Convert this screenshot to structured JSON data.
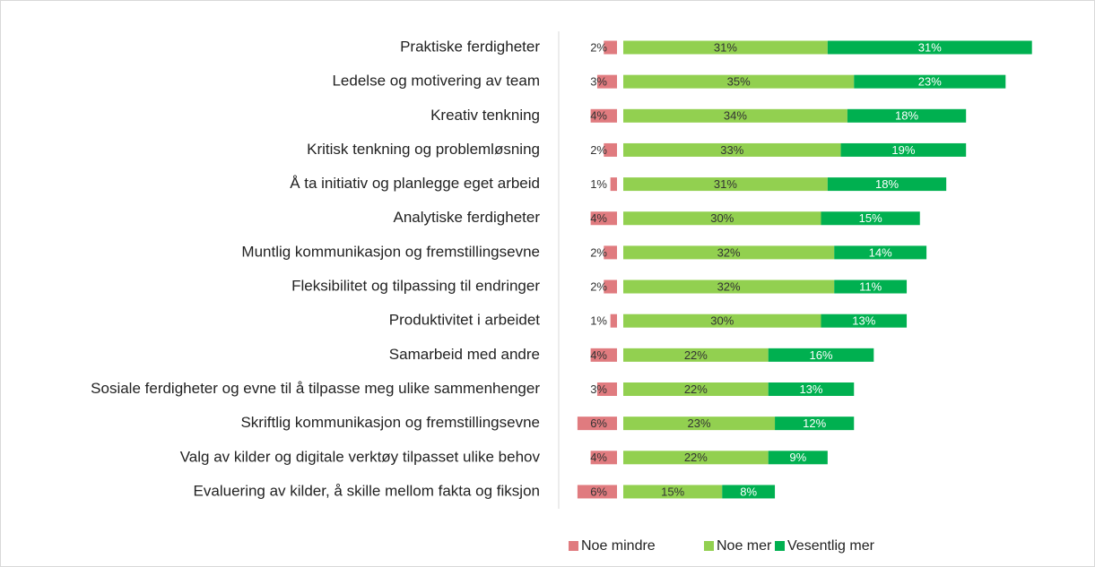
{
  "chart_data": {
    "type": "diverging_bar",
    "categories": [
      "Praktiske ferdigheter",
      "Ledelse og motivering av team",
      "Kreativ tenkning",
      "Kritisk tenkning og problemløsning",
      "Å ta initiativ og planlegge eget arbeid",
      "Analytiske ferdigheter",
      "Muntlig kommunikasjon og fremstillingsevne",
      "Fleksibilitet og tilpassing til endringer",
      "Produktivitet i arbeidet",
      "Samarbeid med andre",
      "Sosiale ferdigheter og evne til å tilpasse meg ulike sammenhenger",
      "Skriftlig kommunikasjon og fremstillingsevne",
      "Valg av kilder og digitale verktøy tilpasset ulike behov",
      "Evaluering av kilder, å skille mellom fakta og fiksjon"
    ],
    "series": [
      {
        "name": "Noe mindre",
        "color": "#e07b7f",
        "direction": "left",
        "values": [
          2,
          3,
          4,
          2,
          1,
          4,
          2,
          2,
          1,
          4,
          3,
          6,
          4,
          6
        ],
        "value_labels": [
          "2%",
          "3%",
          "4%",
          "2%",
          "1%",
          "4%",
          "2%",
          "2%",
          "1%",
          "4%",
          "3%",
          "6%",
          "4%",
          "6%"
        ]
      },
      {
        "name": "Noe mer",
        "color": "#92d050",
        "direction": "right",
        "values": [
          31,
          35,
          34,
          33,
          31,
          30,
          32,
          32,
          30,
          22,
          22,
          23,
          22,
          15
        ],
        "value_labels": [
          "31%",
          "35%",
          "34%",
          "33%",
          "31%",
          "30%",
          "32%",
          "32%",
          "30%",
          "22%",
          "22%",
          "23%",
          "22%",
          "15%"
        ]
      },
      {
        "name": "Vesentlig mer",
        "color": "#00b050",
        "direction": "right",
        "values": [
          31,
          23,
          18,
          19,
          18,
          15,
          14,
          11,
          13,
          16,
          13,
          12,
          9,
          8
        ],
        "value_labels": [
          "31%",
          "23%",
          "18%",
          "19%",
          "18%",
          "15%",
          "14%",
          "11%",
          "13%",
          "16%",
          "13%",
          "12%",
          "9%",
          "8%"
        ]
      }
    ]
  }
}
